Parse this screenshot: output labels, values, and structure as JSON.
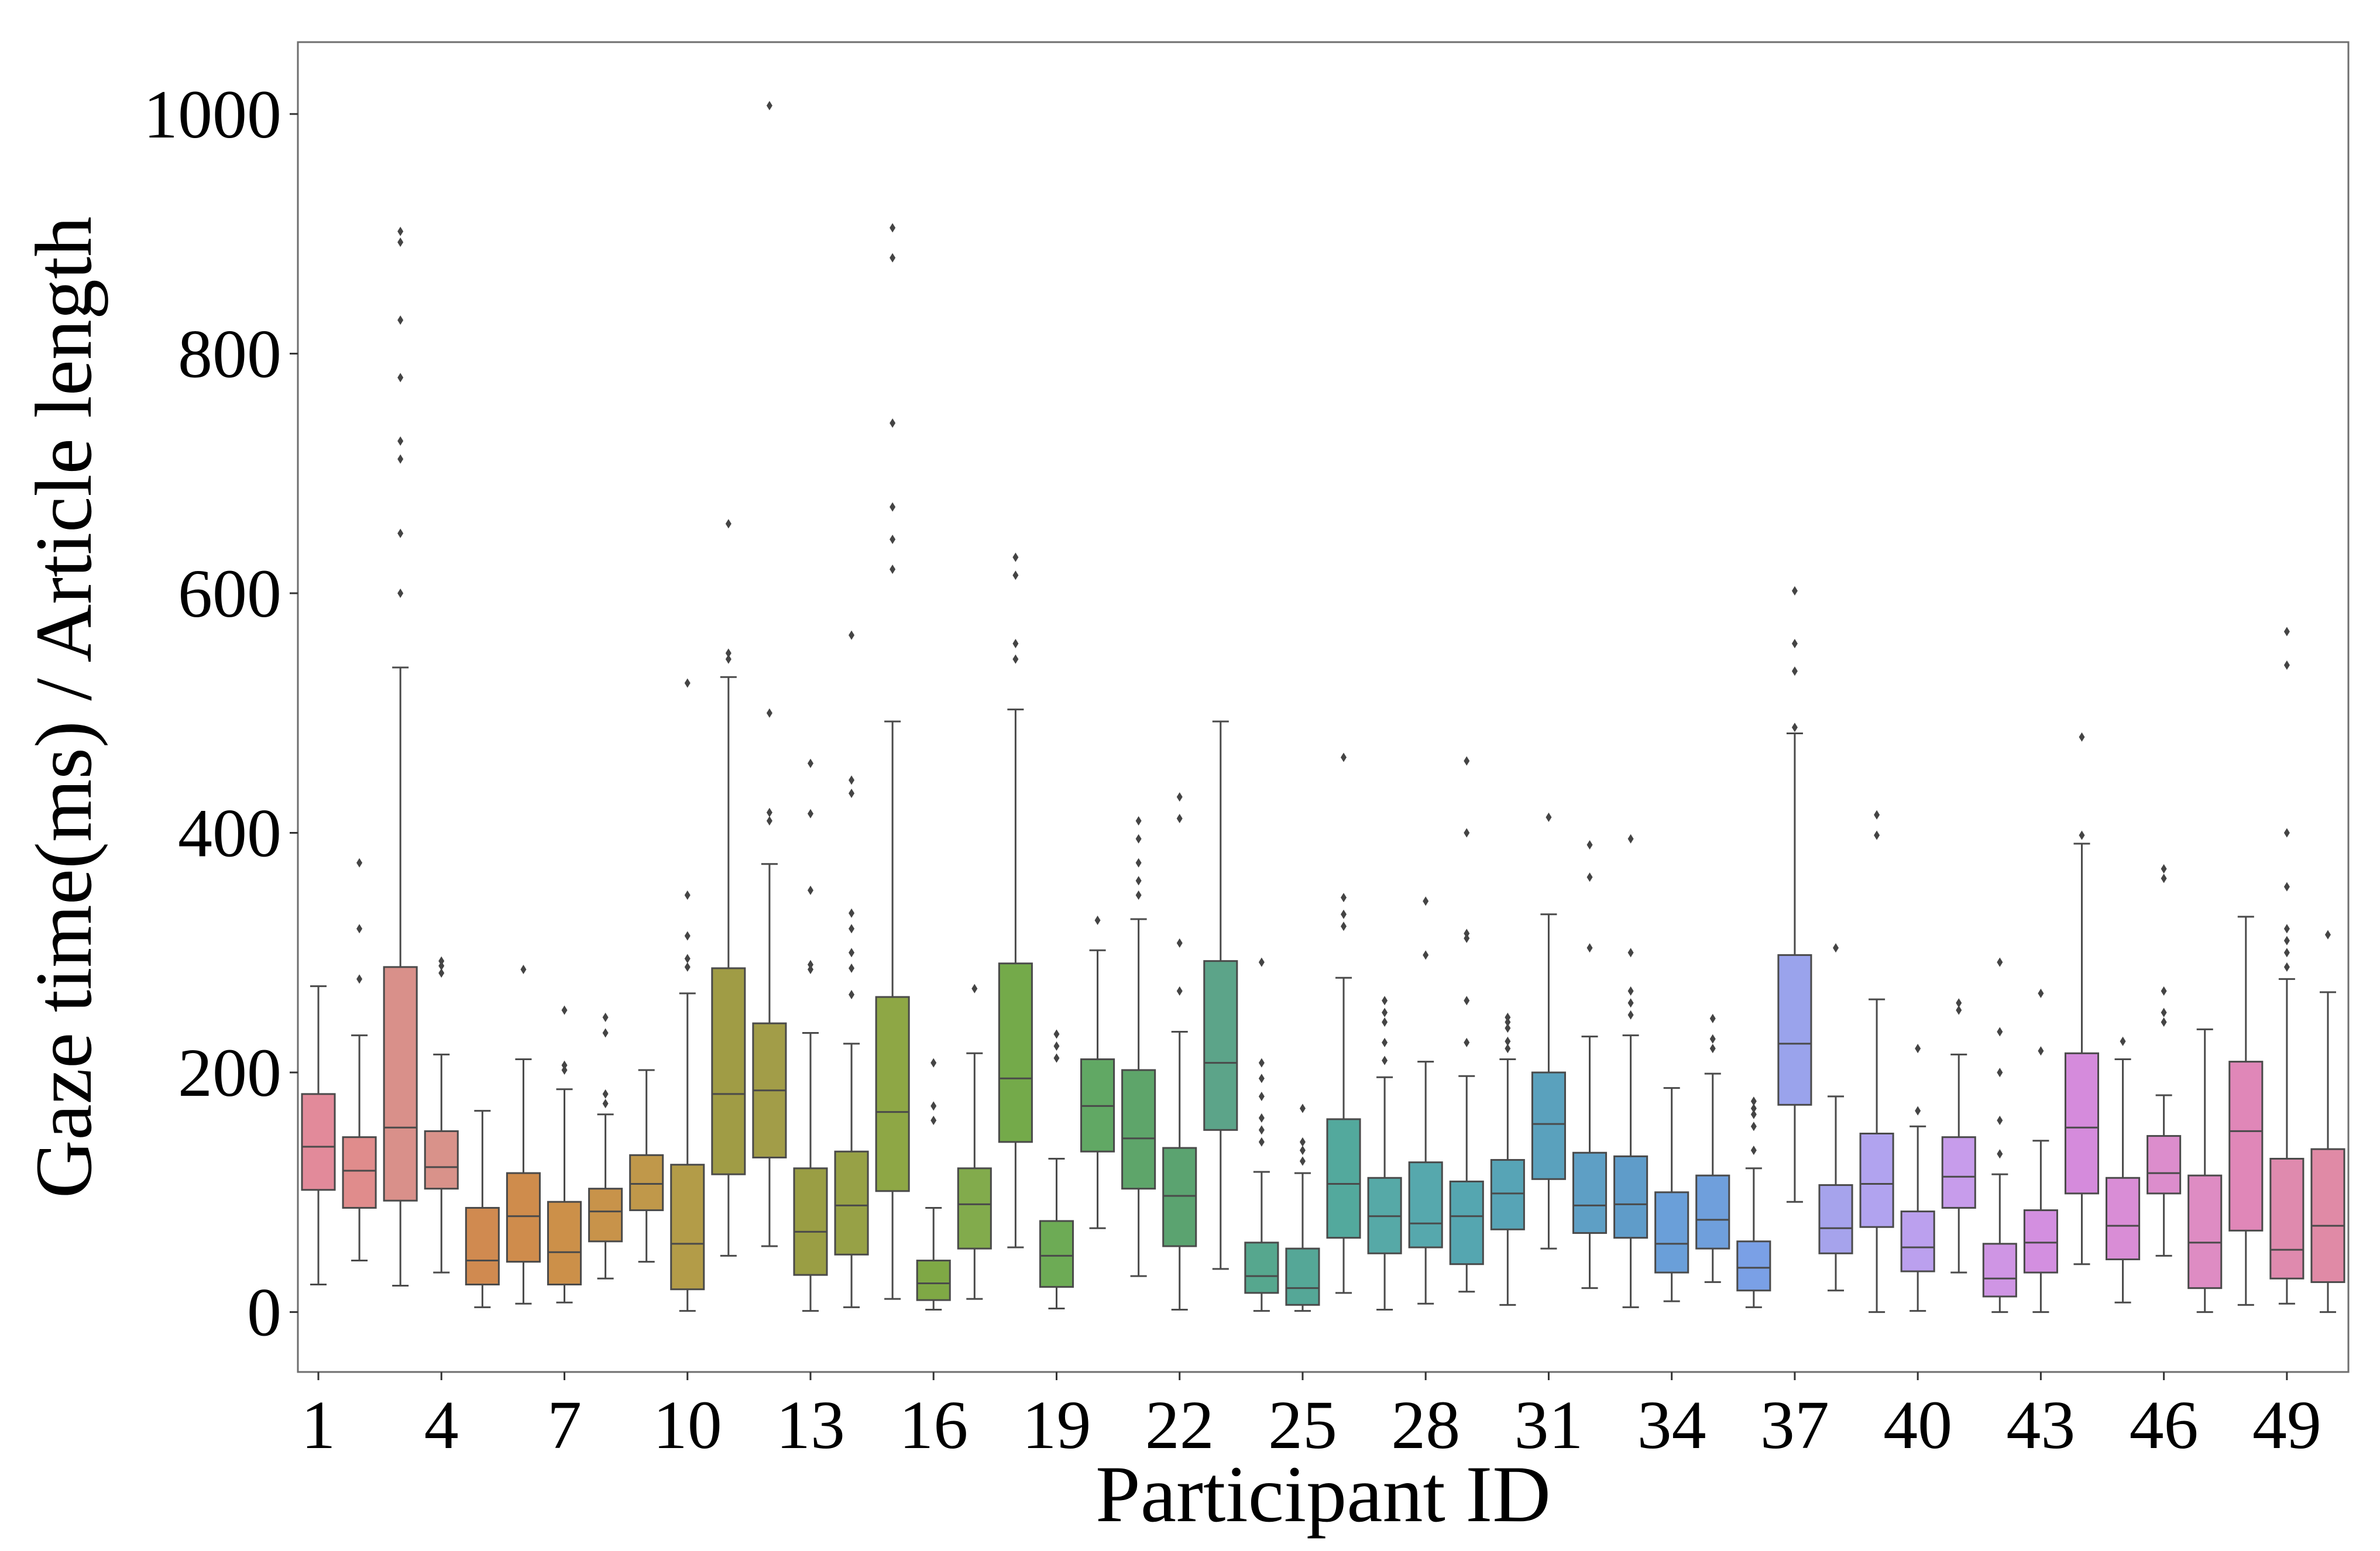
{
  "chart_data": {
    "type": "box",
    "title": "",
    "xlabel": "Participant ID",
    "ylabel": "Gaze time(ms) / Article length",
    "ylim": [
      -50,
      1060
    ],
    "yticks": [
      0,
      200,
      400,
      600,
      800,
      1000
    ],
    "x_tick_labels": [
      "1",
      "4",
      "7",
      "10",
      "13",
      "16",
      "19",
      "22",
      "25",
      "28",
      "31",
      "34",
      "37",
      "40",
      "43",
      "46",
      "49"
    ],
    "grid": false,
    "legend": "none",
    "categories": [
      "1",
      "2",
      "3",
      "4",
      "5",
      "6",
      "7",
      "8",
      "9",
      "10",
      "11",
      "12",
      "13",
      "14",
      "15",
      "16",
      "17",
      "18",
      "19",
      "20",
      "21",
      "22",
      "23",
      "24",
      "25",
      "26",
      "27",
      "28",
      "29",
      "30",
      "31",
      "32",
      "33",
      "34",
      "35",
      "36",
      "37",
      "38",
      "39",
      "40",
      "41",
      "42",
      "43",
      "44",
      "45",
      "46",
      "47",
      "48",
      "49",
      "50"
    ],
    "boxes": [
      {
        "id": "1",
        "whislo": 23,
        "q1": 102,
        "med": 138,
        "q3": 182,
        "whishi": 272,
        "fliers": [],
        "color": "#e28a9a"
      },
      {
        "id": "2",
        "whislo": 43,
        "q1": 87,
        "med": 118,
        "q3": 146,
        "whishi": 231,
        "fliers": [
          278,
          320,
          375
        ],
        "color": "#e08c8c"
      },
      {
        "id": "3",
        "whislo": 22,
        "q1": 93,
        "med": 154,
        "q3": 288,
        "whishi": 538,
        "fliers": [
          600,
          650,
          712,
          727,
          780,
          828,
          893,
          902
        ],
        "color": "#d9908a"
      },
      {
        "id": "4",
        "whislo": 33,
        "q1": 103,
        "med": 121,
        "q3": 151,
        "whishi": 215,
        "fliers": [
          283,
          289,
          293
        ],
        "color": "#d9928a"
      },
      {
        "id": "5",
        "whislo": 4,
        "q1": 23,
        "med": 43,
        "q3": 87,
        "whishi": 168,
        "fliers": [],
        "color": "#d08a50"
      },
      {
        "id": "6",
        "whislo": 7,
        "q1": 42,
        "med": 80,
        "q3": 116,
        "whishi": 211,
        "fliers": [
          286
        ],
        "color": "#cf8c4c"
      },
      {
        "id": "7",
        "whislo": 8,
        "q1": 23,
        "med": 50,
        "q3": 92,
        "whishi": 186,
        "fliers": [
          202,
          206,
          252
        ],
        "color": "#cc9049"
      },
      {
        "id": "8",
        "whislo": 28,
        "q1": 59,
        "med": 84,
        "q3": 103,
        "whishi": 165,
        "fliers": [
          174,
          182,
          233,
          246
        ],
        "color": "#c8934a"
      },
      {
        "id": "9",
        "whislo": 42,
        "q1": 85,
        "med": 107,
        "q3": 131,
        "whishi": 202,
        "fliers": [],
        "color": "#c0984a"
      },
      {
        "id": "10",
        "whislo": 1,
        "q1": 19,
        "med": 57,
        "q3": 123,
        "whishi": 266,
        "fliers": [
          288,
          295,
          314,
          348,
          525
        ],
        "color": "#b39c48"
      },
      {
        "id": "11",
        "whislo": 47,
        "q1": 115,
        "med": 182,
        "q3": 287,
        "whishi": 530,
        "fliers": [
          545,
          550,
          658
        ],
        "color": "#a09c45"
      },
      {
        "id": "12",
        "whislo": 55,
        "q1": 129,
        "med": 185,
        "q3": 241,
        "whishi": 374,
        "fliers": [
          410,
          417,
          500,
          1007
        ],
        "color": "#a29d48"
      },
      {
        "id": "13",
        "whislo": 1,
        "q1": 31,
        "med": 67,
        "q3": 120,
        "whishi": 233,
        "fliers": [
          286,
          290,
          352,
          416,
          458
        ],
        "color": "#9a9e44"
      },
      {
        "id": "14",
        "whislo": 4,
        "q1": 48,
        "med": 89,
        "q3": 134,
        "whishi": 224,
        "fliers": [
          265,
          287,
          300,
          320,
          333,
          433,
          444,
          565
        ],
        "color": "#97a146"
      },
      {
        "id": "15",
        "whislo": 11,
        "q1": 101,
        "med": 167,
        "q3": 263,
        "whishi": 493,
        "fliers": [
          620,
          645,
          672,
          742,
          880,
          905
        ],
        "color": "#8ea745"
      },
      {
        "id": "16",
        "whislo": 2,
        "q1": 10,
        "med": 24,
        "q3": 43,
        "whishi": 87,
        "fliers": [
          160,
          172,
          208
        ],
        "color": "#7fa845"
      },
      {
        "id": "17",
        "whislo": 11,
        "q1": 53,
        "med": 90,
        "q3": 120,
        "whishi": 216,
        "fliers": [
          270
        ],
        "color": "#82ab4c"
      },
      {
        "id": "18",
        "whislo": 54,
        "q1": 142,
        "med": 195,
        "q3": 291,
        "whishi": 503,
        "fliers": [
          545,
          558,
          615,
          630
        ],
        "color": "#74aa4a"
      },
      {
        "id": "19",
        "whislo": 3,
        "q1": 21,
        "med": 47,
        "q3": 76,
        "whishi": 128,
        "fliers": [
          212,
          222,
          232
        ],
        "color": "#6dab55"
      },
      {
        "id": "20",
        "whislo": 70,
        "q1": 134,
        "med": 172,
        "q3": 211,
        "whishi": 302,
        "fliers": [
          327
        ],
        "color": "#61a864"
      },
      {
        "id": "21",
        "whislo": 30,
        "q1": 103,
        "med": 145,
        "q3": 202,
        "whishi": 328,
        "fliers": [
          348,
          360,
          375,
          395,
          410
        ],
        "color": "#5ea56a"
      },
      {
        "id": "22",
        "whislo": 2,
        "q1": 55,
        "med": 97,
        "q3": 137,
        "whishi": 234,
        "fliers": [
          268,
          308,
          412,
          430
        ],
        "color": "#5ba370"
      },
      {
        "id": "23",
        "whislo": 36,
        "q1": 152,
        "med": 208,
        "q3": 293,
        "whishi": 493,
        "fliers": [],
        "color": "#5ca489"
      },
      {
        "id": "24",
        "whislo": 1,
        "q1": 16,
        "med": 30,
        "q3": 58,
        "whishi": 117,
        "fliers": [
          142,
          152,
          162,
          180,
          195,
          208,
          292
        ],
        "color": "#56a78e"
      },
      {
        "id": "25",
        "whislo": 1,
        "q1": 6,
        "med": 20,
        "q3": 53,
        "whishi": 116,
        "fliers": [
          126,
          135,
          142,
          170
        ],
        "color": "#55a797"
      },
      {
        "id": "26",
        "whislo": 16,
        "q1": 62,
        "med": 107,
        "q3": 161,
        "whishi": 279,
        "fliers": [
          322,
          332,
          346,
          463
        ],
        "color": "#53a99d"
      },
      {
        "id": "27",
        "whislo": 2,
        "q1": 49,
        "med": 80,
        "q3": 112,
        "whishi": 196,
        "fliers": [
          210,
          225,
          242,
          250,
          260
        ],
        "color": "#56a9a7"
      },
      {
        "id": "28",
        "whislo": 7,
        "q1": 54,
        "med": 74,
        "q3": 125,
        "whishi": 209,
        "fliers": [
          298,
          343
        ],
        "color": "#56a8ad"
      },
      {
        "id": "29",
        "whislo": 17,
        "q1": 40,
        "med": 80,
        "q3": 109,
        "whishi": 197,
        "fliers": [
          225,
          260,
          312,
          316,
          400,
          460
        ],
        "color": "#55a6b0"
      },
      {
        "id": "30",
        "whislo": 6,
        "q1": 69,
        "med": 99,
        "q3": 127,
        "whishi": 211,
        "fliers": [
          220,
          226,
          237,
          242,
          246
        ],
        "color": "#57a4b6"
      },
      {
        "id": "31",
        "whislo": 53,
        "q1": 111,
        "med": 157,
        "q3": 200,
        "whishi": 332,
        "fliers": [
          413
        ],
        "color": "#5aa1bd"
      },
      {
        "id": "32",
        "whislo": 20,
        "q1": 66,
        "med": 89,
        "q3": 133,
        "whishi": 230,
        "fliers": [
          304,
          363,
          390
        ],
        "color": "#5e9fc5"
      },
      {
        "id": "33",
        "whislo": 4,
        "q1": 62,
        "med": 90,
        "q3": 130,
        "whishi": 231,
        "fliers": [
          248,
          258,
          268,
          300,
          395
        ],
        "color": "#5f9cc9"
      },
      {
        "id": "34",
        "whislo": 9,
        "q1": 33,
        "med": 57,
        "q3": 100,
        "whishi": 187,
        "fliers": [],
        "color": "#6a9fd9"
      },
      {
        "id": "35",
        "whislo": 25,
        "q1": 53,
        "med": 77,
        "q3": 114,
        "whishi": 199,
        "fliers": [
          220,
          228,
          245
        ],
        "color": "#6f9fdc"
      },
      {
        "id": "36",
        "whislo": 4,
        "q1": 18,
        "med": 37,
        "q3": 59,
        "whishi": 120,
        "fliers": [
          135,
          155,
          165,
          170,
          176
        ],
        "color": "#7aa0e6"
      },
      {
        "id": "37",
        "whislo": 92,
        "q1": 173,
        "med": 224,
        "q3": 298,
        "whishi": 483,
        "fliers": [
          488,
          535,
          558,
          602
        ],
        "color": "#9aa3ec"
      },
      {
        "id": "38",
        "whislo": 18,
        "q1": 49,
        "med": 70,
        "q3": 106,
        "whishi": 180,
        "fliers": [
          304
        ],
        "color": "#a6a3ec"
      },
      {
        "id": "39",
        "whislo": 0,
        "q1": 71,
        "med": 107,
        "q3": 149,
        "whishi": 261,
        "fliers": [
          398,
          415
        ],
        "color": "#b1a3ef"
      },
      {
        "id": "40",
        "whislo": 1,
        "q1": 34,
        "med": 54,
        "q3": 84,
        "whishi": 155,
        "fliers": [
          168,
          220
        ],
        "color": "#bba0ee"
      },
      {
        "id": "41",
        "whislo": 33,
        "q1": 87,
        "med": 113,
        "q3": 146,
        "whishi": 215,
        "fliers": [
          252,
          258
        ],
        "color": "#c79ceb"
      },
      {
        "id": "42",
        "whislo": 0,
        "q1": 13,
        "med": 28,
        "q3": 57,
        "whishi": 115,
        "fliers": [
          132,
          160,
          200,
          234,
          292
        ],
        "color": "#cf95e4"
      },
      {
        "id": "43",
        "whislo": 0,
        "q1": 33,
        "med": 58,
        "q3": 85,
        "whishi": 143,
        "fliers": [
          218,
          266
        ],
        "color": "#d38fe0"
      },
      {
        "id": "44",
        "whislo": 40,
        "q1": 99,
        "med": 154,
        "q3": 216,
        "whishi": 391,
        "fliers": [
          398,
          480
        ],
        "color": "#d58bdc"
      },
      {
        "id": "45",
        "whislo": 8,
        "q1": 44,
        "med": 72,
        "q3": 112,
        "whishi": 211,
        "fliers": [
          226
        ],
        "color": "#d98dd6"
      },
      {
        "id": "46",
        "whislo": 47,
        "q1": 99,
        "med": 116,
        "q3": 147,
        "whishi": 181,
        "fliers": [
          242,
          250,
          268,
          362,
          370
        ],
        "color": "#dc8dcc"
      },
      {
        "id": "47",
        "whislo": 0,
        "q1": 20,
        "med": 58,
        "q3": 114,
        "whishi": 236,
        "fliers": [],
        "color": "#de8cc3"
      },
      {
        "id": "48",
        "whislo": 6,
        "q1": 68,
        "med": 151,
        "q3": 209,
        "whishi": 330,
        "fliers": [],
        "color": "#e087b8"
      },
      {
        "id": "49",
        "whislo": 7,
        "q1": 28,
        "med": 52,
        "q3": 128,
        "whishi": 278,
        "fliers": [
          288,
          300,
          310,
          320,
          355,
          400,
          540,
          568
        ],
        "color": "#df8aae"
      },
      {
        "id": "50",
        "whislo": 0,
        "q1": 25,
        "med": 72,
        "q3": 136,
        "whishi": 267,
        "fliers": [
          315
        ],
        "color": "#e08aa6"
      }
    ]
  }
}
